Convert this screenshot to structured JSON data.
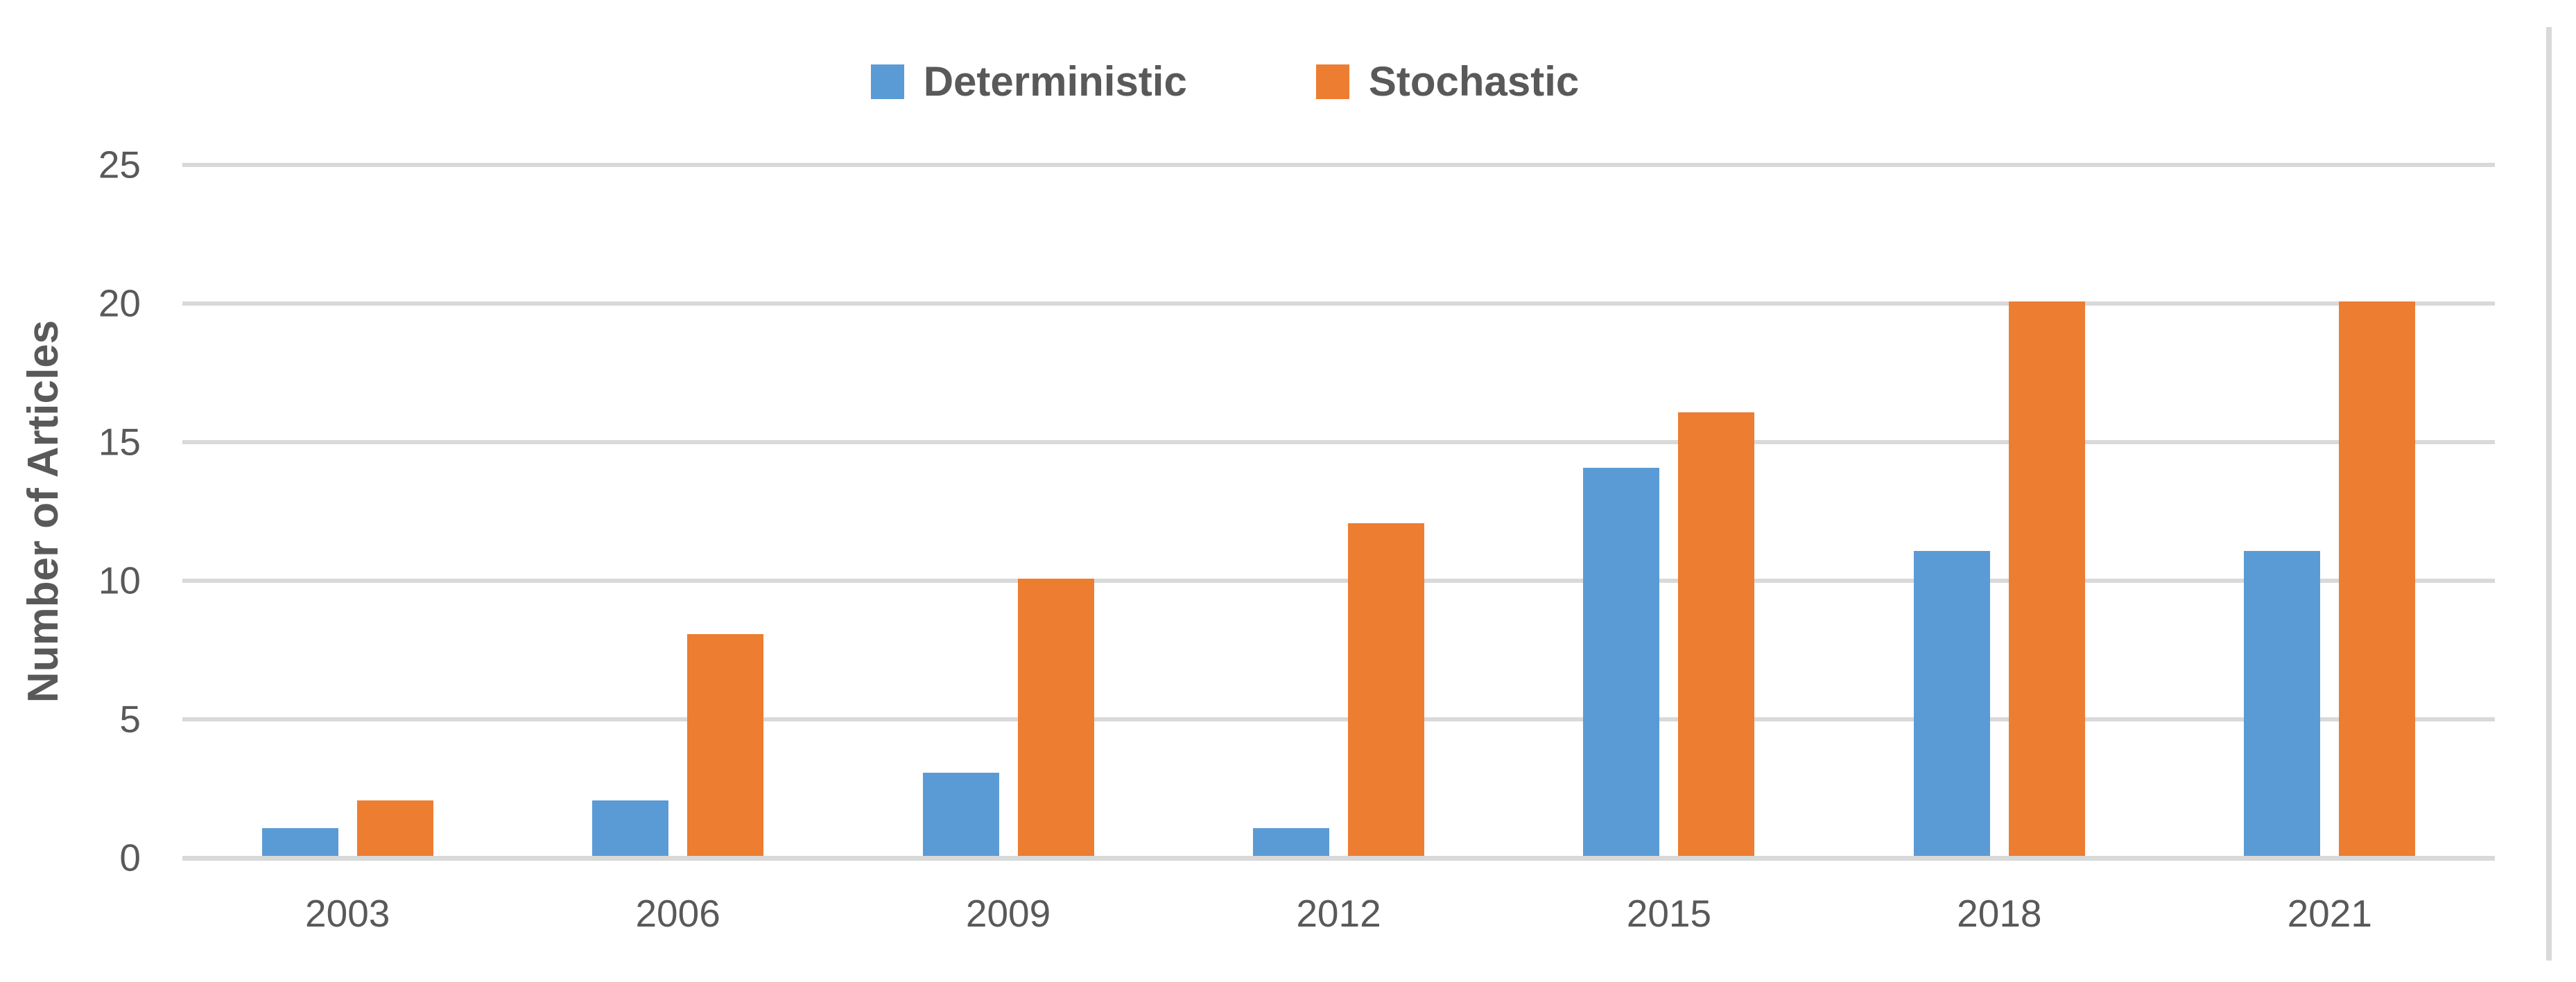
{
  "chart_data": {
    "type": "bar",
    "title": "",
    "categories": [
      "2003",
      "2006",
      "2009",
      "2012",
      "2015",
      "2018",
      "2021"
    ],
    "series": [
      {
        "name": "Deterministic",
        "color": "#5B9BD5",
        "values": [
          1,
          2,
          3,
          1,
          14,
          11,
          11
        ]
      },
      {
        "name": "Stochastic",
        "color": "#ED7D31",
        "values": [
          2,
          8,
          10,
          12,
          16,
          20,
          20
        ]
      }
    ],
    "xlabel": "",
    "ylabel": "Number of Articles",
    "ylim": [
      0,
      25
    ],
    "yticks": [
      0,
      5,
      10,
      15,
      20,
      25
    ],
    "grid": true,
    "legend_position": "top-center"
  },
  "colors": {
    "deterministic": "#5B9BD5",
    "stochastic": "#ED7D31",
    "gridline": "#D9D9D9",
    "axis_text": "#595959",
    "frame_line": "#D9D9D9",
    "background": "#FFFFFF"
  }
}
